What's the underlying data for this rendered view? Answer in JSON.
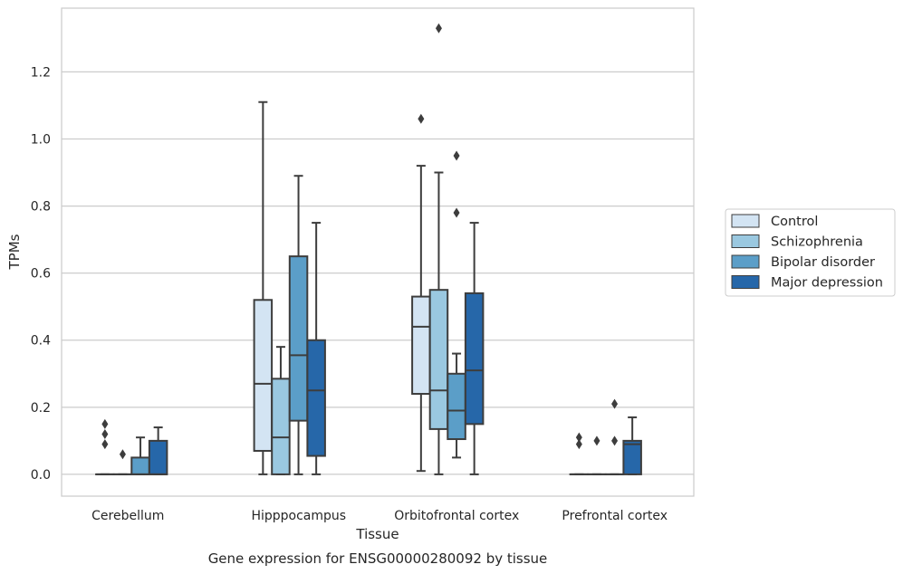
{
  "chart_data": {
    "type": "box",
    "title": "",
    "caption": "Gene expression for ENSG00000280092 by tissue",
    "xlabel": "Tissue",
    "ylabel": "TPMs",
    "ylim": [
      -0.065,
      1.39
    ],
    "yticks": [
      0.0,
      0.2,
      0.4,
      0.6,
      0.8,
      1.0,
      1.2
    ],
    "ytick_labels": [
      "0.0",
      "0.2",
      "0.4",
      "0.6",
      "0.8",
      "1.0",
      "1.2"
    ],
    "grid": "horizontal",
    "legend_position": "right",
    "categories": [
      "Cerebellum",
      "Hipppocampus",
      "Orbitofrontal cortex",
      "Prefrontal cortex"
    ],
    "series": [
      {
        "name": "Control",
        "color": "#d3e4f3",
        "boxes": [
          {
            "whislo": 0.0,
            "q1": 0.0,
            "med": 0.0,
            "q3": 0.0,
            "whishi": 0.0,
            "fliers": [
              0.09,
              0.12,
              0.15
            ]
          },
          {
            "whislo": 0.0,
            "q1": 0.07,
            "med": 0.27,
            "q3": 0.52,
            "whishi": 1.11,
            "fliers": []
          },
          {
            "whislo": 0.01,
            "q1": 0.24,
            "med": 0.44,
            "q3": 0.53,
            "whishi": 0.92,
            "fliers": [
              1.06
            ]
          },
          {
            "whislo": 0.0,
            "q1": 0.0,
            "med": 0.0,
            "q3": 0.0,
            "whishi": 0.0,
            "fliers": [
              0.09,
              0.11
            ]
          }
        ]
      },
      {
        "name": "Schizophrenia",
        "color": "#9ac8e0",
        "boxes": [
          {
            "whislo": 0.0,
            "q1": 0.0,
            "med": 0.0,
            "q3": 0.0,
            "whishi": 0.0,
            "fliers": [
              0.06
            ]
          },
          {
            "whislo": 0.0,
            "q1": 0.0,
            "med": 0.11,
            "q3": 0.285,
            "whishi": 0.38,
            "fliers": []
          },
          {
            "whislo": 0.0,
            "q1": 0.135,
            "med": 0.25,
            "q3": 0.55,
            "whishi": 0.9,
            "fliers": [
              1.33
            ]
          },
          {
            "whislo": 0.0,
            "q1": 0.0,
            "med": 0.0,
            "q3": 0.0,
            "whishi": 0.0,
            "fliers": [
              0.1
            ]
          }
        ]
      },
      {
        "name": "Bipolar disorder",
        "color": "#5b9ec8",
        "boxes": [
          {
            "whislo": 0.0,
            "q1": 0.0,
            "med": 0.0,
            "q3": 0.05,
            "whishi": 0.11,
            "fliers": []
          },
          {
            "whislo": 0.0,
            "q1": 0.16,
            "med": 0.355,
            "q3": 0.65,
            "whishi": 0.89,
            "fliers": []
          },
          {
            "whislo": 0.05,
            "q1": 0.105,
            "med": 0.19,
            "q3": 0.3,
            "whishi": 0.36,
            "fliers": [
              0.78,
              0.95
            ]
          },
          {
            "whislo": 0.0,
            "q1": 0.0,
            "med": 0.0,
            "q3": 0.0,
            "whishi": 0.0,
            "fliers": [
              0.1,
              0.21
            ]
          }
        ]
      },
      {
        "name": "Major depression",
        "color": "#2667a9",
        "boxes": [
          {
            "whislo": 0.0,
            "q1": 0.0,
            "med": 0.0,
            "q3": 0.1,
            "whishi": 0.14,
            "fliers": []
          },
          {
            "whislo": 0.0,
            "q1": 0.055,
            "med": 0.25,
            "q3": 0.4,
            "whishi": 0.75,
            "fliers": []
          },
          {
            "whislo": 0.0,
            "q1": 0.15,
            "med": 0.31,
            "q3": 0.54,
            "whishi": 0.75,
            "fliers": []
          },
          {
            "whislo": 0.0,
            "q1": 0.0,
            "med": 0.09,
            "q3": 0.1,
            "whishi": 0.17,
            "fliers": []
          }
        ]
      }
    ]
  },
  "colors": {
    "grid": "#cccccc",
    "frame": "#cccccc",
    "line": "#3d3d3d",
    "text": "#262626"
  }
}
